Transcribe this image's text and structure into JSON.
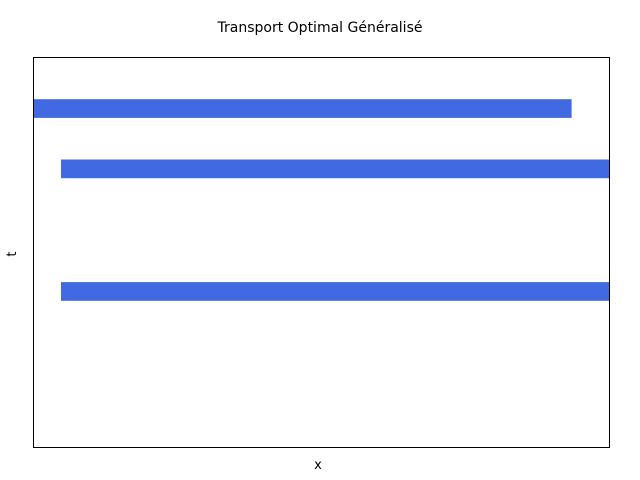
{
  "chart_data": {
    "type": "bar",
    "orientation": "horizontal",
    "title": "Transport Optimal Généralisé",
    "xlabel": "x",
    "ylabel": "t",
    "xlim": [
      0,
      1
    ],
    "ylim": [
      0,
      1
    ],
    "ticks": false,
    "grid": false,
    "legend": "none",
    "bar_color": "#4169E1",
    "bars": [
      {
        "t": 0.87,
        "x_start": 0.0,
        "x_end": 0.935
      },
      {
        "t": 0.715,
        "x_start": 0.047,
        "x_end": 1.0
      },
      {
        "t": 0.4,
        "x_start": 0.047,
        "x_end": 1.0
      }
    ],
    "bar_thickness": 0.048
  }
}
